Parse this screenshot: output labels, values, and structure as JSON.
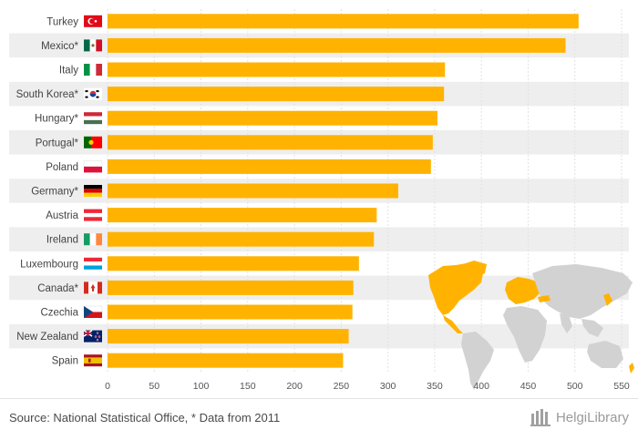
{
  "chart_data": {
    "type": "bar",
    "orientation": "horizontal",
    "categories": [
      "Turkey",
      "Mexico*",
      "Italy",
      "South Korea*",
      "Hungary*",
      "Portugal*",
      "Poland",
      "Germany*",
      "Austria",
      "Ireland",
      "Luxembourg",
      "Canada*",
      "Czechia",
      "New Zealand",
      "Spain"
    ],
    "flags": [
      "turkey-flag",
      "mexico-flag",
      "italy-flag",
      "south-korea-flag",
      "hungary-flag",
      "portugal-flag",
      "poland-flag",
      "germany-flag",
      "austria-flag",
      "ireland-flag",
      "luxembourg-flag",
      "canada-flag",
      "czechia-flag",
      "new-zealand-flag",
      "spain-flag"
    ],
    "values": [
      504,
      490,
      361,
      360,
      353,
      348,
      346,
      311,
      288,
      285,
      269,
      263,
      262,
      258,
      252
    ],
    "xlim": [
      0,
      550
    ],
    "xticks": [
      0,
      50,
      100,
      150,
      200,
      250,
      300,
      350,
      400,
      450,
      500,
      550
    ],
    "grid": true,
    "bar_color": "#ffb300"
  },
  "footer": {
    "source": "Source: National Statistical Office, * Data from 2011",
    "brand": "HelgiLibrary"
  },
  "colors": {
    "bar": "#ffb300",
    "row_band": "#eeeeee",
    "map_land": "#d2d2d2",
    "map_highlight": "#ffb300"
  }
}
